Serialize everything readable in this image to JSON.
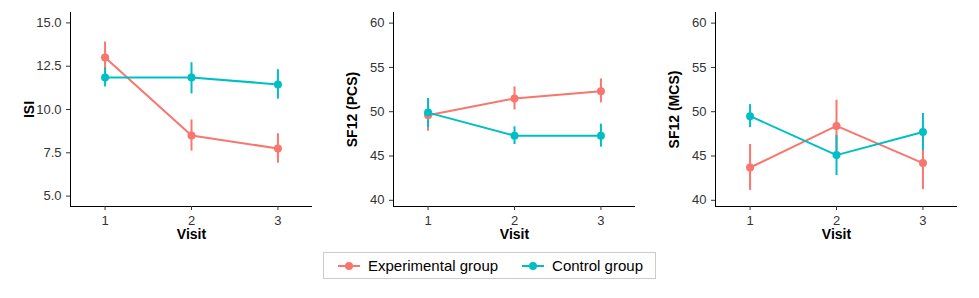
{
  "chart_data": [
    {
      "type": "line",
      "x_label": "Visit",
      "y_label": "ISI",
      "x": [
        1,
        2,
        3
      ],
      "xlim": [
        0.6,
        3.4
      ],
      "xticks": [
        1,
        2,
        3
      ],
      "ylim": [
        4.4,
        15.6
      ],
      "yticks": [
        {
          "value": 5,
          "label": "5.0"
        },
        7.5,
        {
          "value": 10,
          "label": "10.0"
        },
        12.5,
        {
          "value": 15,
          "label": "15.0"
        }
      ],
      "legend": "bottom",
      "marker": "circle",
      "series": [
        {
          "name": "Experimental group",
          "color": "#F8766D",
          "values": [
            13.0,
            8.5,
            7.75
          ],
          "error_low": [
            12.2,
            7.6,
            6.9
          ],
          "error_high": [
            13.9,
            9.4,
            8.6
          ]
        },
        {
          "name": "Control group",
          "color": "#00BFC4",
          "values": [
            11.85,
            11.85,
            11.45
          ],
          "error_low": [
            11.3,
            10.9,
            10.6
          ],
          "error_high": [
            12.4,
            12.7,
            12.3
          ]
        }
      ]
    },
    {
      "type": "line",
      "x_label": "Visit",
      "y_label": "SF12 (PCS)",
      "x": [
        1,
        2,
        3
      ],
      "xlim": [
        0.6,
        3.4
      ],
      "xticks": [
        1,
        2,
        3
      ],
      "ylim": [
        39.3,
        61.2
      ],
      "yticks": [
        40,
        45,
        50,
        55,
        60
      ],
      "legend": "bottom",
      "marker": "circle",
      "series": [
        {
          "name": "Experimental group",
          "color": "#F8766D",
          "values": [
            49.6,
            51.5,
            52.3
          ],
          "error_low": [
            47.8,
            50.2,
            51.0
          ],
          "error_high": [
            51.3,
            52.8,
            53.7
          ]
        },
        {
          "name": "Control group",
          "color": "#00BFC4",
          "values": [
            49.9,
            47.3,
            47.3
          ],
          "error_low": [
            48.2,
            46.3,
            46.0
          ],
          "error_high": [
            51.5,
            48.3,
            48.6
          ]
        }
      ]
    },
    {
      "type": "line",
      "x_label": "Visit",
      "y_label": "SF12 (MCS)",
      "x": [
        1,
        2,
        3
      ],
      "xlim": [
        0.6,
        3.4
      ],
      "xticks": [
        1,
        2,
        3
      ],
      "ylim": [
        39.3,
        61.2
      ],
      "yticks": [
        40,
        45,
        50,
        55,
        60
      ],
      "legend": "bottom",
      "marker": "circle",
      "series": [
        {
          "name": "Experimental group",
          "color": "#F8766D",
          "values": [
            43.7,
            48.4,
            44.2
          ],
          "error_low": [
            41.1,
            45.5,
            41.2
          ],
          "error_high": [
            46.3,
            51.3,
            47.2
          ]
        },
        {
          "name": "Control group",
          "color": "#00BFC4",
          "values": [
            49.5,
            45.1,
            47.7
          ],
          "error_low": [
            48.2,
            42.8,
            45.6
          ],
          "error_high": [
            50.8,
            47.3,
            49.8
          ]
        }
      ]
    }
  ]
}
